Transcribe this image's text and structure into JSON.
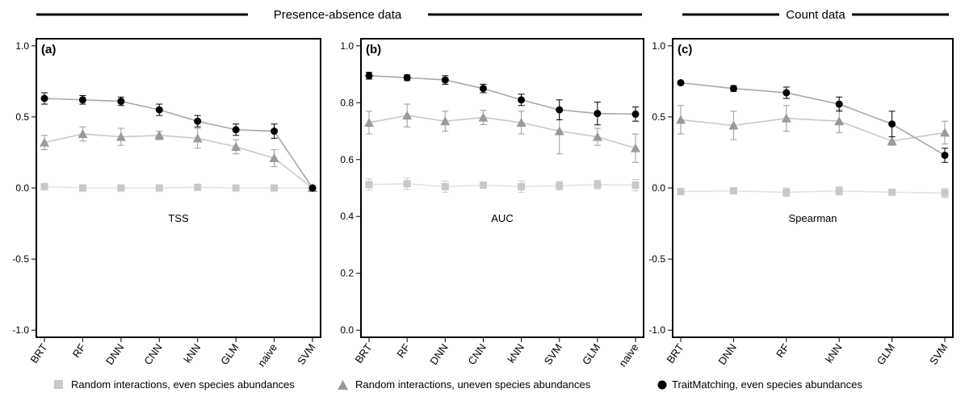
{
  "figure": {
    "groups": [
      {
        "label": "Presence-absence data"
      },
      {
        "label": "Count data"
      }
    ]
  },
  "legend": [
    {
      "label": "Random interactions, even species abundances",
      "marker": "square",
      "color": "#c8c8c8"
    },
    {
      "label": "Random interactions, uneven species abundances",
      "marker": "triangle",
      "color": "#9a9a9a"
    },
    {
      "label": "TraitMatching, even species abundances",
      "marker": "circle",
      "color": "#000000"
    }
  ],
  "chart_data": [
    {
      "type": "scatter",
      "panel_label": "(a)",
      "metric_label": "TSS",
      "categories": [
        "BRT",
        "RF",
        "DNN",
        "CNN",
        "kNN",
        "GLM",
        "naive",
        "SVM"
      ],
      "ylim": [
        -1.05,
        1.05
      ],
      "yticks": [
        1.0,
        0.5,
        0.0,
        -0.5,
        -1.0
      ],
      "ytick_labels": [
        "1.0",
        "0.5",
        "0.0",
        "-0.5",
        "-1.0"
      ],
      "series": [
        {
          "values": [
            0.01,
            0.0,
            0.0,
            0.0,
            0.005,
            0.0,
            0.0,
            0.0
          ],
          "err": [
            0.02,
            0.01,
            0.02,
            0.01,
            0.01,
            0.01,
            0.01,
            0.01
          ],
          "marker": "square",
          "color": "#c8c8c8",
          "line_color": "#e4e4e4"
        },
        {
          "values": [
            0.32,
            0.38,
            0.36,
            0.37,
            0.35,
            0.29,
            0.21,
            0.0
          ],
          "err": [
            0.05,
            0.05,
            0.06,
            0.03,
            0.07,
            0.05,
            0.06,
            0.01
          ],
          "marker": "triangle",
          "color": "#9a9a9a",
          "line_color": "#c8c8c8"
        },
        {
          "values": [
            0.63,
            0.62,
            0.61,
            0.55,
            0.47,
            0.41,
            0.4,
            0.0
          ],
          "err": [
            0.04,
            0.03,
            0.03,
            0.04,
            0.04,
            0.04,
            0.05,
            0.01
          ],
          "marker": "circle",
          "color": "#000000",
          "line_color": "#a8a8a8"
        }
      ]
    },
    {
      "type": "scatter",
      "panel_label": "(b)",
      "metric_label": "AUC",
      "categories": [
        "BRT",
        "RF",
        "DNN",
        "CNN",
        "kNN",
        "SVM",
        "GLM",
        "naive"
      ],
      "ylim": [
        -0.025,
        1.025
      ],
      "yticks": [
        1.0,
        0.8,
        0.6,
        0.4,
        0.2,
        0.0
      ],
      "ytick_labels": [
        "1.0",
        "0.8",
        "0.6",
        "0.4",
        "0.2",
        "0.0"
      ],
      "series": [
        {
          "values": [
            0.512,
            0.515,
            0.505,
            0.51,
            0.505,
            0.508,
            0.512,
            0.51
          ],
          "err": [
            0.02,
            0.02,
            0.02,
            0.01,
            0.02,
            0.015,
            0.015,
            0.02
          ],
          "marker": "square",
          "color": "#c8c8c8",
          "line_color": "#e4e4e4"
        },
        {
          "values": [
            0.73,
            0.755,
            0.735,
            0.748,
            0.73,
            0.7,
            0.68,
            0.64
          ],
          "err": [
            0.04,
            0.04,
            0.035,
            0.025,
            0.04,
            0.08,
            0.03,
            0.05
          ],
          "marker": "triangle",
          "color": "#9a9a9a",
          "line_color": "#c8c8c8"
        },
        {
          "values": [
            0.895,
            0.888,
            0.88,
            0.85,
            0.81,
            0.775,
            0.762,
            0.76
          ],
          "err": [
            0.012,
            0.01,
            0.015,
            0.015,
            0.02,
            0.035,
            0.04,
            0.025
          ],
          "marker": "circle",
          "color": "#000000",
          "line_color": "#a8a8a8"
        }
      ]
    },
    {
      "type": "scatter",
      "panel_label": "(c)",
      "metric_label": "Spearman",
      "categories": [
        "BRT",
        "DNN",
        "RF",
        "kNN",
        "GLM",
        "SVM"
      ],
      "ylim": [
        -1.05,
        1.05
      ],
      "yticks": [
        1.0,
        0.5,
        0.0,
        -0.5,
        -1.0
      ],
      "ytick_labels": [
        "1.0",
        "0.5",
        "0.0",
        "-0.5",
        "-1.0"
      ],
      "series": [
        {
          "values": [
            -0.025,
            -0.02,
            -0.03,
            -0.02,
            -0.03,
            -0.035
          ],
          "err": [
            0.01,
            0.015,
            0.03,
            0.03,
            0.02,
            0.03
          ],
          "marker": "square",
          "color": "#c8c8c8",
          "line_color": "#e4e4e4"
        },
        {
          "values": [
            0.48,
            0.44,
            0.49,
            0.47,
            0.33,
            0.39
          ],
          "err": [
            0.1,
            0.1,
            0.09,
            0.08,
            0.03,
            0.08
          ],
          "marker": "triangle",
          "color": "#9a9a9a",
          "line_color": "#c8c8c8"
        },
        {
          "values": [
            0.74,
            0.7,
            0.67,
            0.59,
            0.45,
            0.23
          ],
          "err": [
            0.01,
            0.02,
            0.04,
            0.05,
            0.09,
            0.05
          ],
          "marker": "circle",
          "color": "#000000",
          "line_color": "#a8a8a8"
        }
      ]
    }
  ]
}
